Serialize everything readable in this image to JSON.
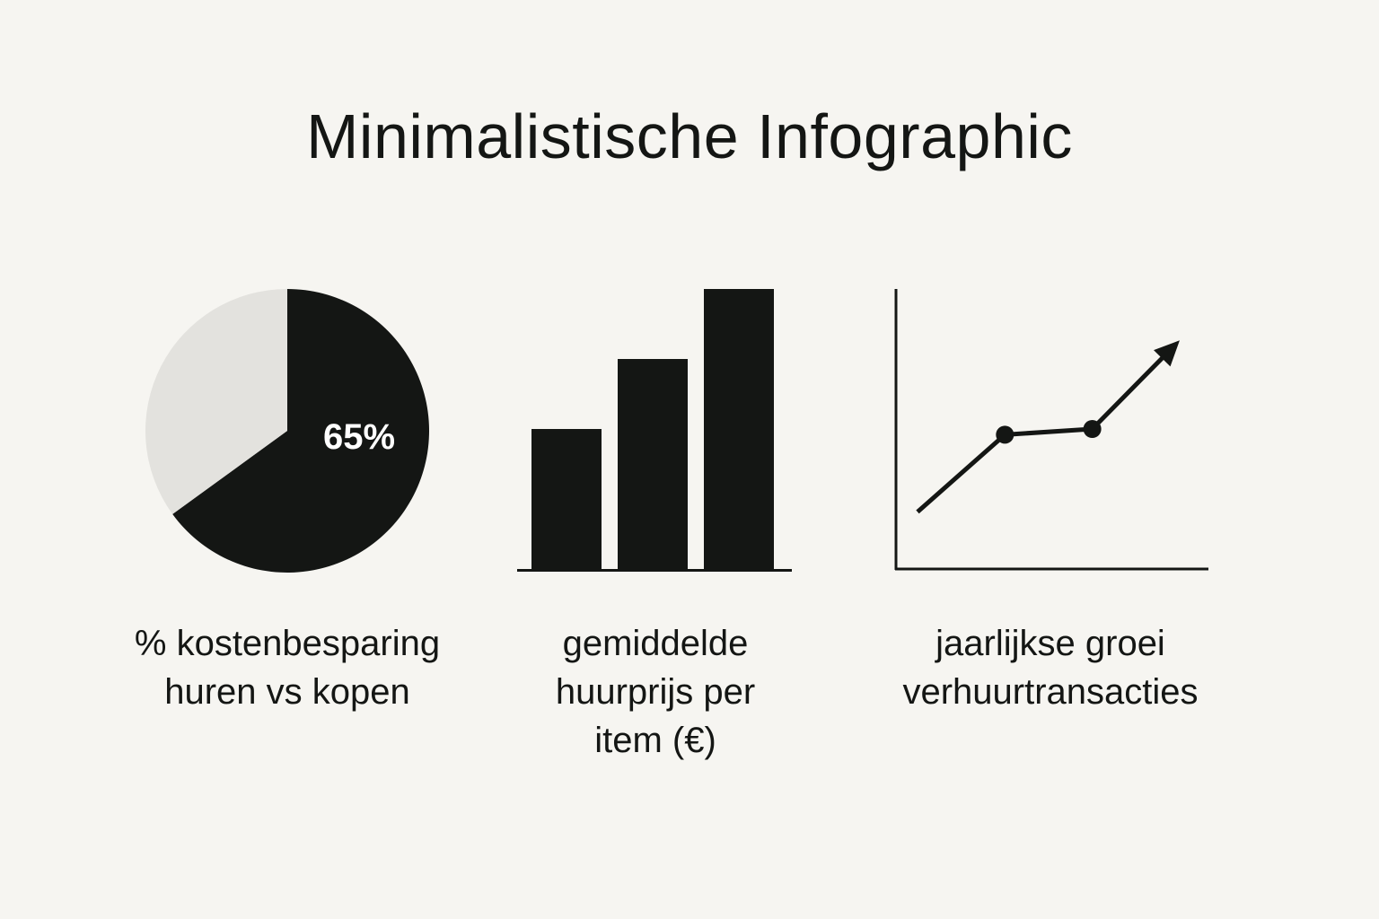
{
  "title": "Minimalistische Infographic",
  "colors": {
    "background": "#f6f5f1",
    "dark": "#141614",
    "light": "#e3e2de"
  },
  "chart_data": [
    {
      "type": "pie",
      "values": [
        65,
        35
      ],
      "data_label": "65%",
      "caption": [
        "% kostenbesparing",
        "huren vs kopen"
      ]
    },
    {
      "type": "bar",
      "values": [
        2.0,
        3.0,
        4.0
      ],
      "ylim": [
        0,
        4.0
      ],
      "caption": [
        "gemiddelde",
        "huurprijs per",
        "item (€)"
      ]
    },
    {
      "type": "line",
      "x": [
        0,
        1,
        2,
        3
      ],
      "values": [
        1.0,
        2.35,
        2.45,
        4.0
      ],
      "xlim": [
        0,
        3.35
      ],
      "ylim": [
        0,
        4.9
      ],
      "markers_at": [
        1,
        2
      ],
      "arrow_end": true,
      "caption": [
        "jaarlijkse groei",
        "verhuurtransacties"
      ]
    }
  ]
}
